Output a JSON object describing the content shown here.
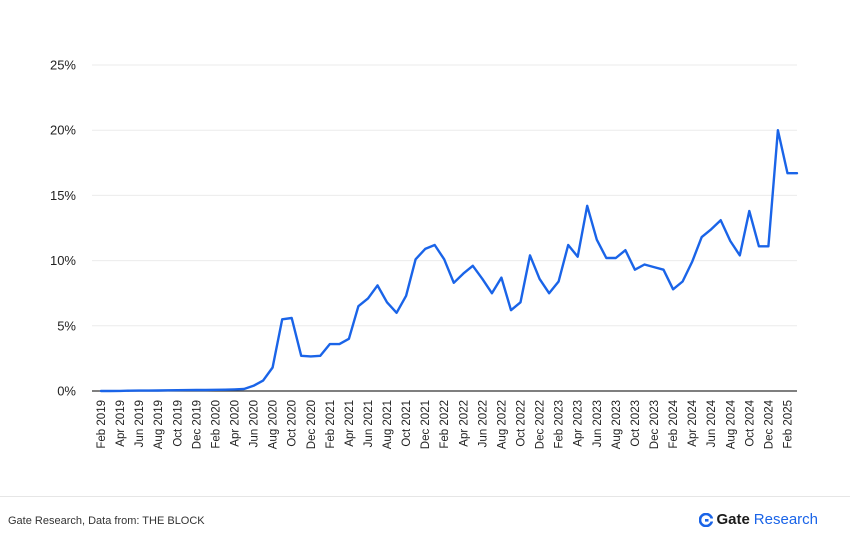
{
  "chart_data": {
    "type": "line",
    "title": "",
    "xlabel": "",
    "ylabel": "",
    "ylim": [
      0,
      25
    ],
    "yticks": [
      "0%",
      "5%",
      "10%",
      "15%",
      "20%",
      "25%"
    ],
    "grid": "horizontal",
    "legend": "none",
    "xtick_labels": [
      "Feb 2019",
      "Apr 2019",
      "Jun 2019",
      "Aug 2019",
      "Oct 2019",
      "Dec 2019",
      "Feb 2020",
      "Apr 2020",
      "Jun 2020",
      "Aug 2020",
      "Oct 2020",
      "Dec 2020",
      "Feb 2021",
      "Apr 2021",
      "Jun 2021",
      "Aug 2021",
      "Oct 2021",
      "Dec 2021",
      "Feb 2022",
      "Apr 2022",
      "Jun 2022",
      "Aug 2022",
      "Oct 2022",
      "Dec 2022",
      "Feb 2023",
      "Apr 2023",
      "Jun 2023",
      "Aug 2023",
      "Oct 2023",
      "Dec 2023",
      "Feb 2024",
      "Apr 2024",
      "Jun 2024",
      "Aug 2024",
      "Oct 2024",
      "Dec 2024",
      "Feb 2025"
    ],
    "x": [
      "Feb 2019",
      "Mar 2019",
      "Apr 2019",
      "May 2019",
      "Jun 2019",
      "Jul 2019",
      "Aug 2019",
      "Sep 2019",
      "Oct 2019",
      "Nov 2019",
      "Dec 2019",
      "Jan 2020",
      "Feb 2020",
      "Mar 2020",
      "Apr 2020",
      "May 2020",
      "Jun 2020",
      "Jul 2020",
      "Aug 2020",
      "Sep 2020",
      "Oct 2020",
      "Nov 2020",
      "Dec 2020",
      "Jan 2021",
      "Feb 2021",
      "Mar 2021",
      "Apr 2021",
      "May 2021",
      "Jun 2021",
      "Jul 2021",
      "Aug 2021",
      "Sep 2021",
      "Oct 2021",
      "Nov 2021",
      "Dec 2021",
      "Jan 2022",
      "Feb 2022",
      "Mar 2022",
      "Apr 2022",
      "May 2022",
      "Jun 2022",
      "Jul 2022",
      "Aug 2022",
      "Sep 2022",
      "Oct 2022",
      "Nov 2022",
      "Dec 2022",
      "Jan 2023",
      "Feb 2023",
      "Mar 2023",
      "Apr 2023",
      "May 2023",
      "Jun 2023",
      "Jul 2023",
      "Aug 2023",
      "Sep 2023",
      "Oct 2023",
      "Nov 2023",
      "Dec 2023",
      "Jan 2024",
      "Feb 2024",
      "Mar 2024",
      "Apr 2024",
      "May 2024",
      "Jun 2024",
      "Jul 2024",
      "Aug 2024",
      "Sep 2024",
      "Oct 2024",
      "Nov 2024",
      "Dec 2024",
      "Jan 2025",
      "Feb 2025",
      "Mar 2025"
    ],
    "series": [
      {
        "color": "#1a64e8",
        "values": [
          0.0,
          0.0,
          0.01,
          0.02,
          0.03,
          0.03,
          0.04,
          0.05,
          0.06,
          0.07,
          0.08,
          0.08,
          0.09,
          0.1,
          0.12,
          0.15,
          0.4,
          0.8,
          1.8,
          5.5,
          5.6,
          2.7,
          2.65,
          2.7,
          3.6,
          3.6,
          4.0,
          6.5,
          7.1,
          8.1,
          6.8,
          6.0,
          7.3,
          10.1,
          10.9,
          11.2,
          10.1,
          8.3,
          9.0,
          9.6,
          8.6,
          7.5,
          8.7,
          6.2,
          6.8,
          10.4,
          8.6,
          7.5,
          8.4,
          11.2,
          10.3,
          14.2,
          11.6,
          10.2,
          10.2,
          10.8,
          9.3,
          9.7,
          9.5,
          9.3,
          7.8,
          8.4,
          9.9,
          11.8,
          12.4,
          13.1,
          11.5,
          10.4,
          13.8,
          11.1,
          11.1,
          20.0,
          16.7,
          16.7
        ]
      }
    ]
  },
  "footer": {
    "source": "Gate Research, Data from: THE BLOCK",
    "brand_main": "Gate",
    "brand_sub": "Research",
    "brand_color": "#1a64e8"
  }
}
